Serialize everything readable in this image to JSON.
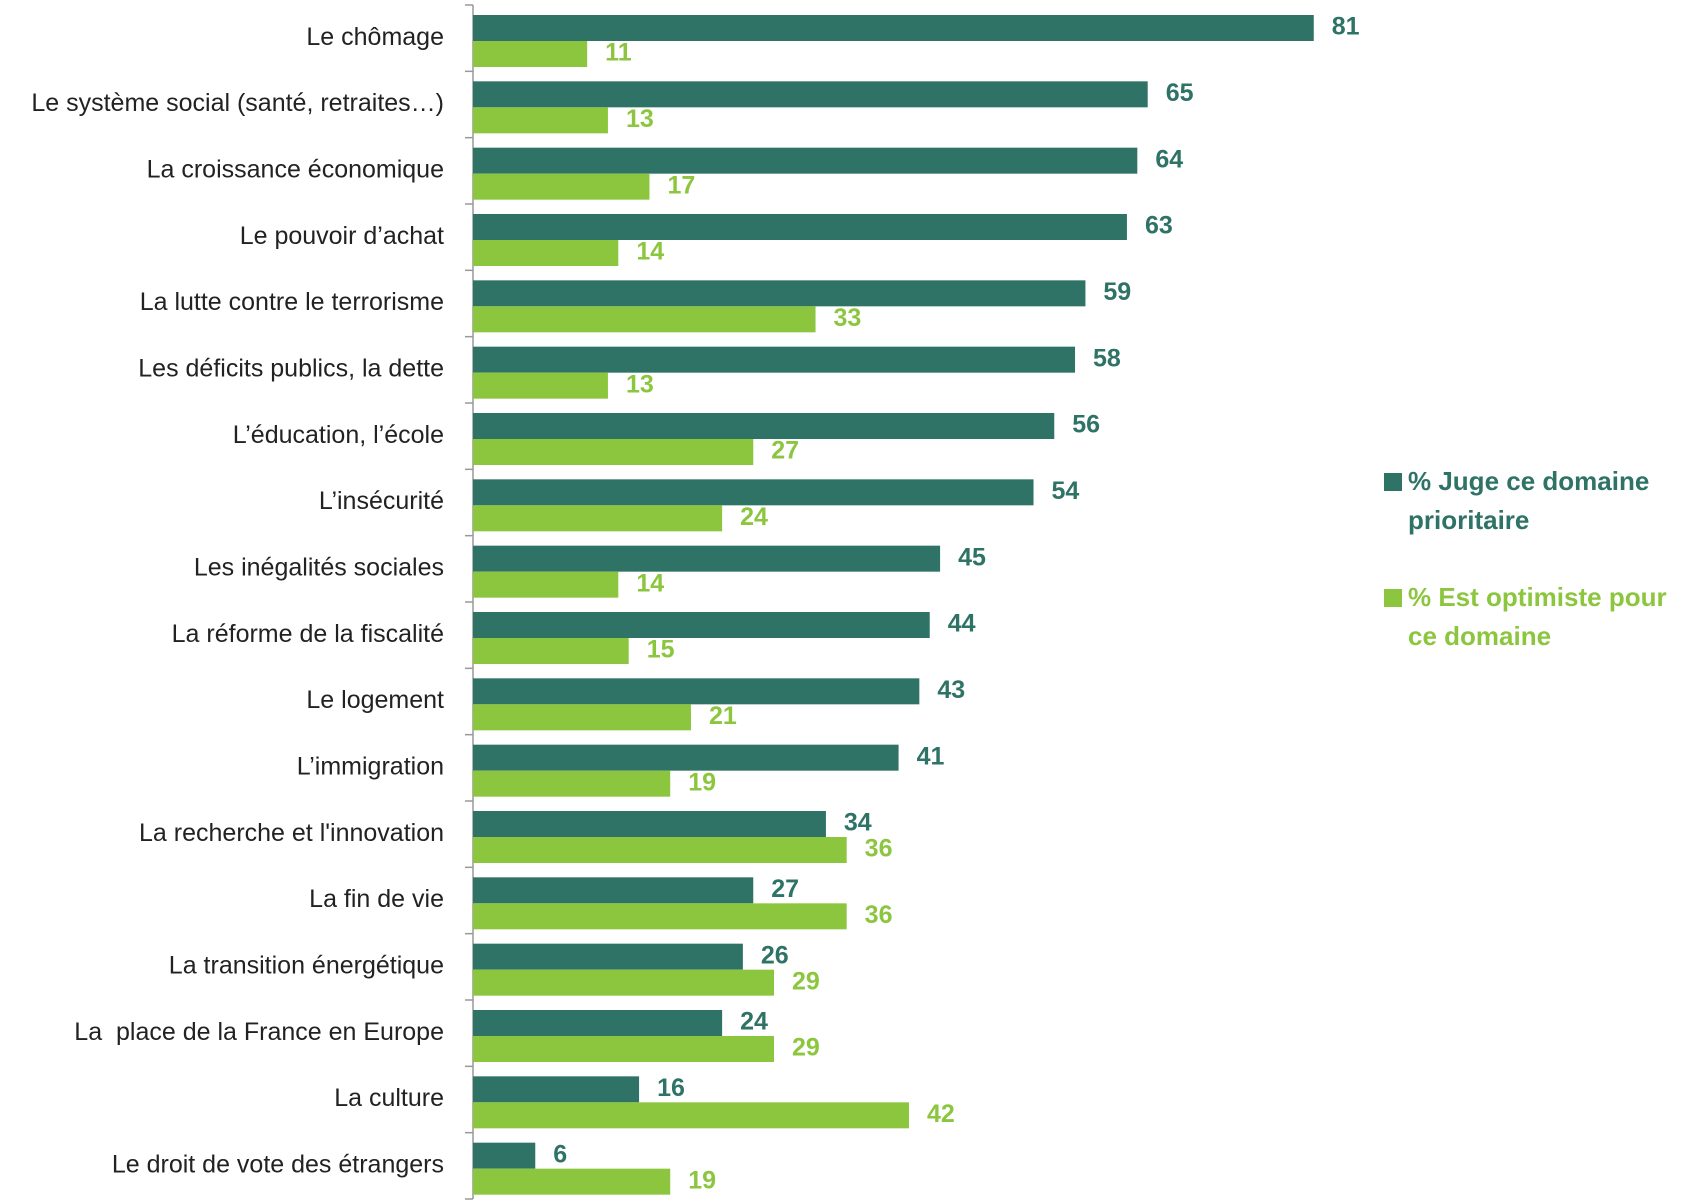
{
  "chart_data": {
    "type": "hbar",
    "categories": [
      "Le chômage",
      "Le système social (santé, retraites…)",
      "La croissance économique",
      "Le pouvoir d’achat",
      "La lutte contre le terrorisme",
      "Les déficits publics, la dette",
      "L’éducation, l’école",
      "L’insécurité",
      "Les inégalités sociales",
      "La réforme de la fiscalité",
      "Le logement",
      "L’immigration",
      "La recherche et l'innovation",
      "La fin de vie",
      "La transition énergétique",
      "La  place de la France en Europe",
      "La culture",
      "Le droit de vote des étrangers"
    ],
    "series": [
      {
        "name": "% Juge ce domaine prioritaire",
        "color": "#2e7366",
        "values": [
          81,
          65,
          64,
          63,
          59,
          58,
          56,
          54,
          45,
          44,
          43,
          41,
          34,
          27,
          26,
          24,
          16,
          6
        ]
      },
      {
        "name": "% Est optimiste pour ce domaine",
        "color": "#8cc63f",
        "values": [
          11,
          13,
          17,
          14,
          33,
          13,
          27,
          24,
          14,
          15,
          21,
          19,
          36,
          36,
          29,
          29,
          42,
          19
        ]
      }
    ],
    "xlim": [
      0,
      100
    ],
    "legend": "right"
  }
}
